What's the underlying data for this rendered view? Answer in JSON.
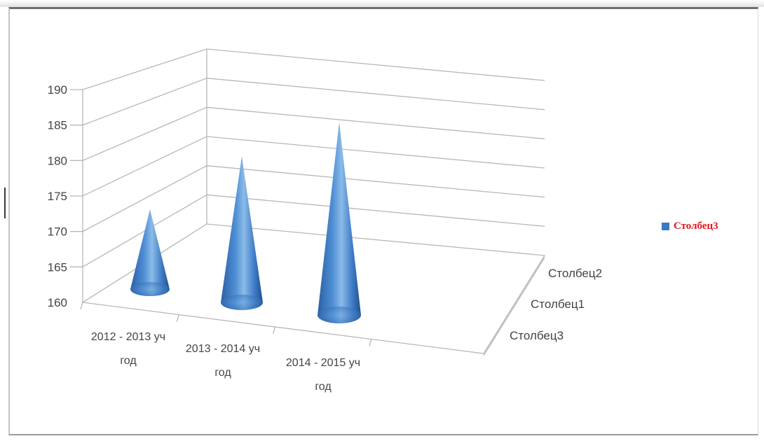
{
  "colors": {
    "cone": "#3a78c4",
    "cone_dark": "#1f4f8c",
    "cone_light": "#9cc7ef",
    "grid": "#b7b7b7",
    "axis_text": "#444444",
    "legend_text": "#e8141c"
  },
  "legend": {
    "label": "Столбец3",
    "placement": "right"
  },
  "chart_data": {
    "type": "bar",
    "subtype": "3d-cone",
    "categories": [
      "2012 - 2013 уч год",
      "2013 - 2014 уч год",
      "2014 - 2015 уч год"
    ],
    "category_lines": [
      [
        "2012 - 2013 уч",
        "год"
      ],
      [
        "2013 - 2014 уч",
        "год"
      ],
      [
        "2014 - 2015 уч",
        "год"
      ]
    ],
    "depth_categories": [
      "Столбец2",
      "Столбец1",
      "Столбец3"
    ],
    "series": [
      {
        "name": "Столбец3",
        "values": [
          172,
          182,
          189
        ]
      }
    ],
    "y_ticks": [
      160,
      165,
      170,
      175,
      180,
      185,
      190
    ],
    "ylim": [
      160,
      190
    ],
    "grid": true,
    "legend": "right"
  }
}
